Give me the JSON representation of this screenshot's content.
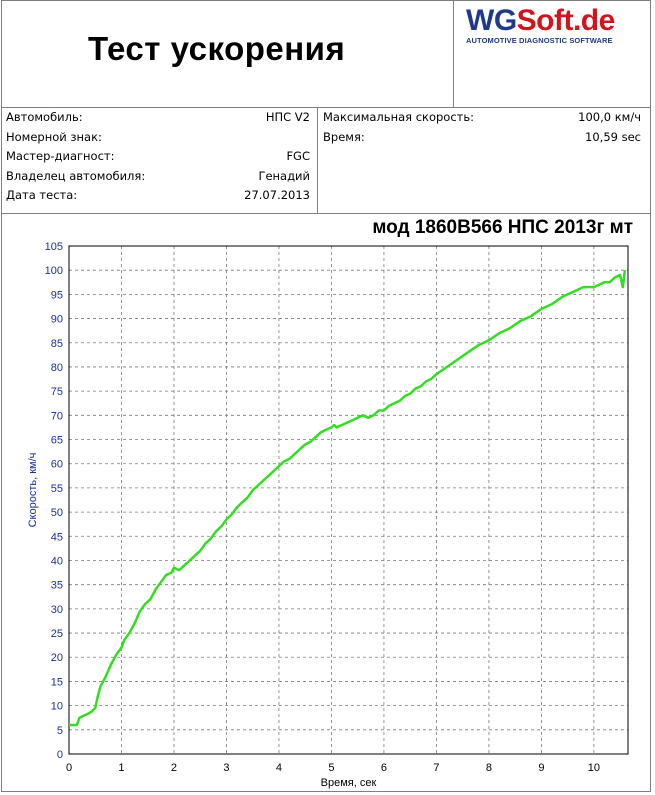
{
  "report": {
    "title": "Тест ускорения",
    "logo": {
      "wg": "WG",
      "soft": "Soft.de",
      "tagline": "AUTOMOTIVE DIAGNOSTIC SOFTWARE"
    },
    "left_info": [
      {
        "label": "Автомобиль:",
        "value": "НПС V2"
      },
      {
        "label": "Номерной знак:",
        "value": ""
      },
      {
        "label": "Мастер-диагност:",
        "value": "FGC"
      },
      {
        "label": "Владелец автомобиля:",
        "value": "Генадий"
      },
      {
        "label": "Дата теста:",
        "value": "27.07.2013"
      }
    ],
    "right_info": [
      {
        "label": "Максимальная скорость:",
        "value": "100,0 км/ч"
      },
      {
        "label": "Время:",
        "value": "10,59 sec"
      }
    ],
    "subtitle": "мод 1860В566 НПС 2013г мт"
  },
  "colors": {
    "line": "#33dd22",
    "grid": "#7a7a7a",
    "ytick": "#1a2fa0",
    "logo_blue": "#1f3a8a",
    "logo_red": "#d4141d"
  },
  "chart_data": {
    "type": "line",
    "xlabel": "Время, сек",
    "ylabel": "Скорость, км/ч",
    "xlim": [
      0,
      10.65
    ],
    "ylim": [
      0,
      105
    ],
    "xticks": [
      0,
      1,
      2,
      3,
      4,
      5,
      6,
      7,
      8,
      9,
      10
    ],
    "yticks": [
      0,
      5,
      10,
      15,
      20,
      25,
      30,
      35,
      40,
      45,
      50,
      55,
      60,
      65,
      70,
      75,
      80,
      85,
      90,
      95,
      100,
      105
    ],
    "grid": true,
    "series": [
      {
        "x": [
          0.0,
          0.15,
          0.2,
          0.3,
          0.4,
          0.45,
          0.5,
          0.55,
          0.6,
          0.7,
          0.8,
          0.9,
          1.0,
          1.05,
          1.15,
          1.25,
          1.35,
          1.45,
          1.55,
          1.65,
          1.75,
          1.85,
          1.95,
          2.0,
          2.1,
          2.2,
          2.3,
          2.4,
          2.5,
          2.6,
          2.7,
          2.8,
          2.9,
          3.0,
          3.1,
          3.2,
          3.3,
          3.4,
          3.5,
          3.6,
          3.7,
          3.8,
          3.9,
          4.0,
          4.1,
          4.2,
          4.3,
          4.4,
          4.5,
          4.6,
          4.7,
          4.8,
          4.9,
          5.0,
          5.05,
          5.1,
          5.2,
          5.3,
          5.4,
          5.5,
          5.6,
          5.7,
          5.8,
          5.9,
          6.0,
          6.1,
          6.2,
          6.3,
          6.4,
          6.5,
          6.6,
          6.7,
          6.8,
          6.9,
          7.0,
          7.2,
          7.4,
          7.6,
          7.8,
          8.0,
          8.2,
          8.4,
          8.6,
          8.8,
          9.0,
          9.2,
          9.4,
          9.6,
          9.8,
          10.0,
          10.1,
          10.2,
          10.3,
          10.4,
          10.5,
          10.55,
          10.59
        ],
        "y": [
          6,
          6,
          7.5,
          8,
          8.5,
          9,
          9.5,
          12,
          14,
          16,
          18.5,
          20.5,
          22,
          23.5,
          25,
          27,
          29.5,
          31,
          32,
          34,
          35.5,
          37,
          37.5,
          38.5,
          38,
          39,
          40,
          41,
          42,
          43.5,
          44.5,
          46,
          47,
          48.5,
          49.5,
          51,
          52,
          53,
          54.5,
          55.5,
          56.5,
          57.5,
          58.5,
          59.5,
          60.5,
          61,
          62,
          63,
          64,
          64.5,
          65.5,
          66.5,
          67,
          67.5,
          68,
          67.5,
          68,
          68.5,
          69,
          69.5,
          70,
          69.5,
          70,
          71,
          71,
          72,
          72.5,
          73,
          74,
          74.5,
          75.5,
          76,
          77,
          77.5,
          78.5,
          80,
          81.5,
          83,
          84.5,
          85.5,
          87,
          88,
          89.5,
          90.5,
          92,
          93,
          94.5,
          95.5,
          96.5,
          96.5,
          97,
          97.5,
          97.5,
          98.5,
          99,
          96.5,
          100
        ]
      }
    ]
  }
}
